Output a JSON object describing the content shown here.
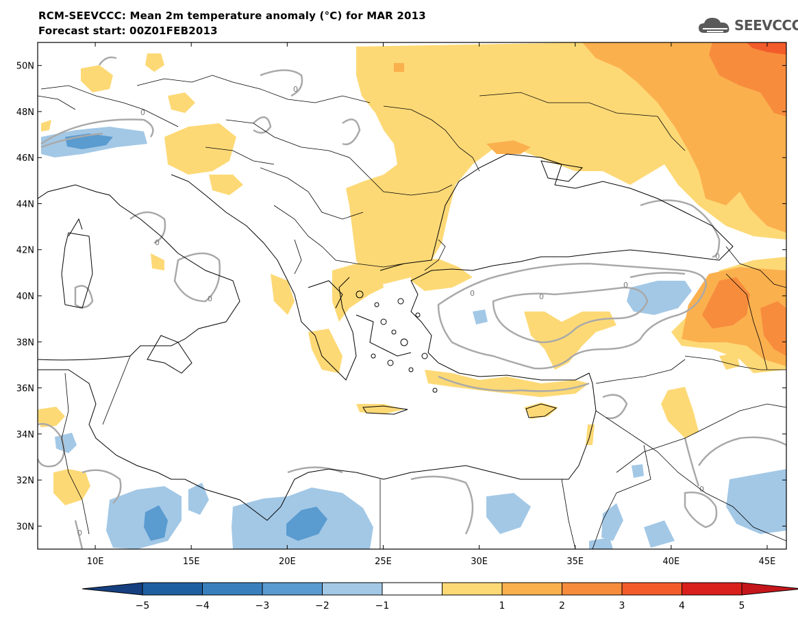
{
  "title": {
    "line1": "RCM-SEEVCCC: Mean 2m temperature anomaly (°C) for MAR 2013",
    "line2": "Forecast start: 00Z01FEB2013"
  },
  "logo": {
    "text": "SEEVCCC",
    "icon": "cloud-icon"
  },
  "axes": {
    "lat_labels": [
      "50N",
      "48N",
      "46N",
      "44N",
      "42N",
      "40N",
      "38N",
      "36N",
      "34N",
      "32N",
      "30N"
    ],
    "lat_values": [
      50,
      48,
      46,
      44,
      42,
      40,
      38,
      36,
      34,
      32,
      30
    ],
    "lon_labels": [
      "10E",
      "15E",
      "20E",
      "25E",
      "30E",
      "35E",
      "40E",
      "45E"
    ],
    "lon_values": [
      10,
      15,
      20,
      25,
      30,
      35,
      40,
      45
    ],
    "lon_range": [
      7,
      46
    ],
    "lat_range": [
      29,
      51
    ]
  },
  "colorbar": {
    "labels": [
      "−5",
      "−4",
      "−3",
      "−2",
      "−1",
      "1",
      "2",
      "3",
      "4",
      "5"
    ],
    "colors": [
      "#1e5fa0",
      "#3a7fbd",
      "#5a9bd0",
      "#a3c8e6",
      "#ffffff",
      "#fdd976",
      "#fbb04e",
      "#f78c3d",
      "#f25c2a",
      "#d9201c"
    ],
    "under_color": "#163f80",
    "over_color": "#c4161b"
  },
  "contour_label": "0"
}
